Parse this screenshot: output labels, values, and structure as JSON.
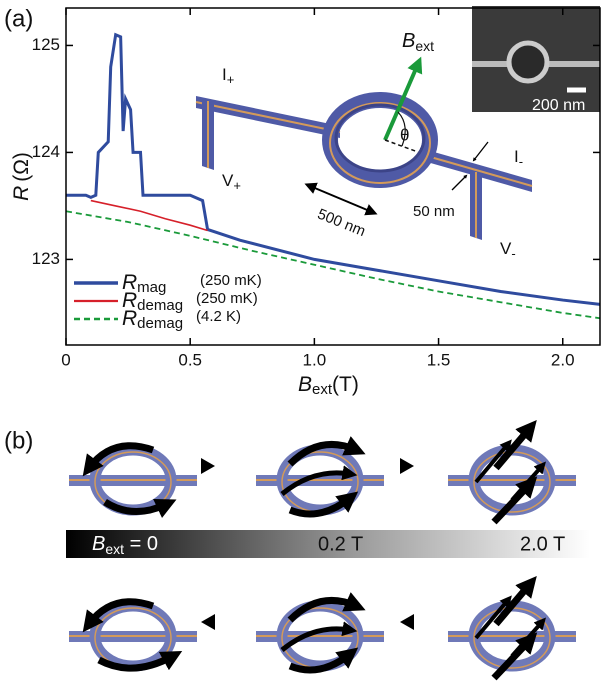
{
  "chart_data": {
    "type": "line",
    "panel_label": "(a)",
    "ylabel": {
      "symbol": "R",
      "unit": "(Ω)"
    },
    "xlabel": {
      "symbol": "B",
      "sub": "ext",
      "unit": "(T)"
    },
    "xlim": [
      0,
      2.15
    ],
    "xticks": [
      0,
      0.5,
      {
        "value": 1,
        "label": "1.0"
      },
      1.5,
      {
        "value": 2,
        "label": "2.0"
      }
    ],
    "ylim": [
      122.2,
      125.35
    ],
    "yticks": [
      123,
      124,
      125
    ],
    "series": [
      {
        "name": "R",
        "subscript": "mag",
        "condition": "(250 mK)",
        "color": "#2f4b9e",
        "style": "solid",
        "width": 3,
        "x": [
          0,
          0.08,
          0.1,
          0.12,
          0.13,
          0.17,
          0.18,
          0.2,
          0.22,
          0.23,
          0.24,
          0.26,
          0.27,
          0.3,
          0.31,
          0.4,
          0.5,
          0.55,
          0.57,
          0.7,
          1.0,
          1.25,
          1.5,
          1.75,
          2.0,
          2.15
        ],
        "values": [
          123.6,
          123.6,
          123.58,
          123.6,
          124.0,
          124.1,
          124.8,
          125.1,
          125.08,
          124.2,
          124.5,
          124.4,
          124.0,
          124.0,
          123.6,
          123.6,
          123.6,
          123.55,
          123.28,
          123.18,
          123.0,
          122.9,
          122.8,
          122.7,
          122.62,
          122.58
        ]
      },
      {
        "name": "R",
        "subscript": "demag",
        "condition": "(250 mK)",
        "color": "#d6202a",
        "style": "solid",
        "width": 1.6,
        "x": [
          0.1,
          0.2,
          0.3,
          0.4,
          0.5,
          0.57
        ],
        "values": [
          123.55,
          123.5,
          123.45,
          123.38,
          123.32,
          123.27
        ]
      },
      {
        "name": "R",
        "subscript": "demag",
        "condition": "(4.2 K)",
        "color": "#1a9a3a",
        "style": "dashed",
        "width": 1.8,
        "x": [
          0,
          0.25,
          0.5,
          0.75,
          1.0,
          1.25,
          1.5,
          1.75,
          2.0,
          2.15
        ],
        "values": [
          123.45,
          123.35,
          123.22,
          123.08,
          122.95,
          122.82,
          122.7,
          122.6,
          122.5,
          122.45
        ]
      }
    ]
  },
  "device_inset": {
    "field": {
      "main": "B",
      "sub": "ext"
    },
    "angle": "θ",
    "i_plus": {
      "main": "I",
      "sub": "+"
    },
    "v_plus": {
      "main": "V",
      "sub": "+"
    },
    "i_minus": {
      "main": "I",
      "sub": "-"
    },
    "v_minus": {
      "main": "V",
      "sub": "-"
    },
    "length": "500 nm",
    "width": "50 nm",
    "sem_scale": "200 nm"
  },
  "panel_b": {
    "label": "(b)",
    "scale": {
      "start_symbol": "B",
      "start_sub": "ext",
      "start_rest": " = 0",
      "mid": "0.2 T",
      "end": "2.0 T"
    }
  }
}
